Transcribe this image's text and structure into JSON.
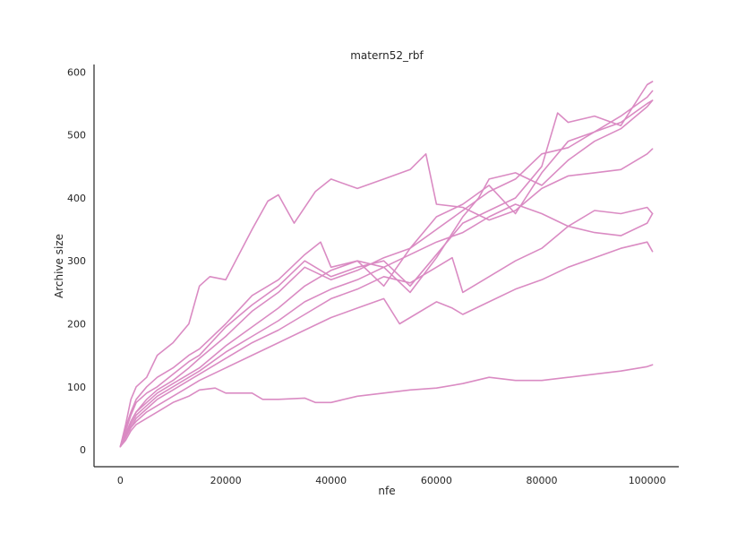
{
  "chart_data": {
    "type": "line",
    "title": "matern52_rbf",
    "xlabel": "nfe",
    "ylabel": "Archive size",
    "xlim": [
      -5000,
      106000
    ],
    "ylim": [
      -27,
      612
    ],
    "xticks": [
      0,
      20000,
      40000,
      60000,
      80000,
      100000
    ],
    "xtick_labels": [
      "0",
      "20000",
      "40000",
      "60000",
      "80000",
      "100000"
    ],
    "yticks": [
      0,
      100,
      200,
      300,
      400,
      500,
      600
    ],
    "ytick_labels": [
      "0",
      "100",
      "200",
      "300",
      "400",
      "500",
      "600"
    ],
    "grid": false,
    "line_color": "#da8bc3",
    "series": [
      {
        "x": [
          0,
          1000,
          2000,
          3000,
          5000,
          7000,
          10000,
          13000,
          15000,
          17000,
          20000,
          25000,
          28000,
          30000,
          33000,
          37000,
          40000,
          45000,
          50000,
          55000,
          58000,
          60000,
          65000,
          70000,
          75000,
          80000,
          85000,
          90000,
          95000,
          100000,
          101000
        ],
        "y": [
          5,
          40,
          80,
          100,
          115,
          150,
          170,
          200,
          260,
          275,
          270,
          350,
          395,
          405,
          360,
          410,
          430,
          415,
          430,
          445,
          470,
          390,
          385,
          365,
          380,
          415,
          435,
          440,
          445,
          470,
          478
        ]
      },
      {
        "x": [
          0,
          1000,
          2000,
          3000,
          5000,
          7000,
          10000,
          13000,
          15000,
          20000,
          25000,
          30000,
          35000,
          38000,
          40000,
          45000,
          50000,
          55000,
          60000,
          65000,
          68000,
          70000,
          75000,
          80000,
          85000,
          90000,
          95000,
          100000,
          101000
        ],
        "y": [
          5,
          35,
          60,
          80,
          100,
          115,
          130,
          150,
          160,
          200,
          245,
          270,
          310,
          330,
          290,
          300,
          290,
          250,
          305,
          370,
          400,
          430,
          440,
          420,
          460,
          490,
          510,
          545,
          555
        ]
      },
      {
        "x": [
          0,
          1000,
          2000,
          3000,
          5000,
          7000,
          10000,
          13000,
          15000,
          20000,
          25000,
          30000,
          35000,
          40000,
          45000,
          50000,
          55000,
          60000,
          65000,
          70000,
          75000,
          80000,
          83000,
          85000,
          90000,
          95000,
          100000,
          101000
        ],
        "y": [
          5,
          30,
          55,
          75,
          90,
          100,
          120,
          140,
          150,
          195,
          230,
          260,
          300,
          275,
          290,
          300,
          260,
          310,
          360,
          380,
          400,
          450,
          535,
          520,
          530,
          515,
          580,
          585
        ]
      },
      {
        "x": [
          0,
          1000,
          2000,
          3000,
          5000,
          7000,
          10000,
          13000,
          15000,
          20000,
          25000,
          30000,
          35000,
          40000,
          45000,
          50000,
          55000,
          60000,
          65000,
          70000,
          75000,
          80000,
          85000,
          90000,
          95000,
          100000,
          101000
        ],
        "y": [
          5,
          25,
          45,
          60,
          80,
          95,
          110,
          130,
          145,
          180,
          220,
          250,
          290,
          270,
          285,
          305,
          320,
          370,
          390,
          420,
          375,
          440,
          490,
          505,
          530,
          560,
          570
        ]
      },
      {
        "x": [
          0,
          1000,
          2000,
          3000,
          5000,
          7000,
          10000,
          13000,
          15000,
          20000,
          25000,
          30000,
          35000,
          40000,
          45000,
          50000,
          55000,
          60000,
          65000,
          70000,
          75000,
          80000,
          85000,
          90000,
          95000,
          100000,
          101000
        ],
        "y": [
          5,
          25,
          45,
          60,
          75,
          90,
          105,
          120,
          130,
          165,
          195,
          225,
          260,
          285,
          300,
          260,
          320,
          350,
          380,
          410,
          430,
          470,
          480,
          505,
          520,
          550,
          555
        ]
      },
      {
        "x": [
          0,
          1000,
          2000,
          3000,
          5000,
          7000,
          10000,
          13000,
          15000,
          20000,
          25000,
          30000,
          35000,
          40000,
          45000,
          50000,
          55000,
          60000,
          65000,
          70000,
          75000,
          80000,
          85000,
          90000,
          95000,
          100000,
          101000
        ],
        "y": [
          5,
          20,
          40,
          55,
          70,
          85,
          100,
          115,
          125,
          155,
          180,
          205,
          235,
          255,
          270,
          290,
          310,
          330,
          345,
          370,
          390,
          375,
          355,
          345,
          340,
          360,
          375
        ]
      },
      {
        "x": [
          0,
          1000,
          2000,
          3000,
          5000,
          7000,
          10000,
          13000,
          15000,
          20000,
          25000,
          30000,
          35000,
          40000,
          45000,
          50000,
          55000,
          60000,
          63000,
          65000,
          70000,
          75000,
          80000,
          85000,
          90000,
          95000,
          100000,
          101000
        ],
        "y": [
          5,
          20,
          35,
          50,
          65,
          80,
          95,
          110,
          120,
          145,
          170,
          190,
          215,
          240,
          255,
          275,
          265,
          290,
          305,
          250,
          275,
          300,
          320,
          355,
          380,
          375,
          385,
          375
        ]
      },
      {
        "x": [
          0,
          1000,
          2000,
          3000,
          5000,
          7000,
          10000,
          13000,
          15000,
          20000,
          25000,
          30000,
          35000,
          40000,
          45000,
          50000,
          53000,
          55000,
          60000,
          63000,
          65000,
          70000,
          75000,
          80000,
          85000,
          90000,
          95000,
          100000,
          101000
        ],
        "y": [
          5,
          20,
          35,
          45,
          60,
          70,
          85,
          100,
          110,
          130,
          150,
          170,
          190,
          210,
          225,
          240,
          200,
          210,
          235,
          225,
          215,
          235,
          255,
          270,
          290,
          305,
          320,
          330,
          315
        ]
      },
      {
        "x": [
          0,
          1000,
          2000,
          3000,
          5000,
          7000,
          10000,
          13000,
          15000,
          18000,
          20000,
          25000,
          27000,
          30000,
          35000,
          37000,
          40000,
          45000,
          50000,
          55000,
          60000,
          65000,
          70000,
          75000,
          80000,
          85000,
          90000,
          95000,
          100000,
          101000
        ],
        "y": [
          5,
          15,
          30,
          40,
          50,
          60,
          75,
          85,
          95,
          98,
          90,
          90,
          80,
          80,
          82,
          75,
          75,
          85,
          90,
          95,
          98,
          105,
          115,
          110,
          110,
          115,
          120,
          125,
          132,
          135
        ]
      }
    ]
  }
}
